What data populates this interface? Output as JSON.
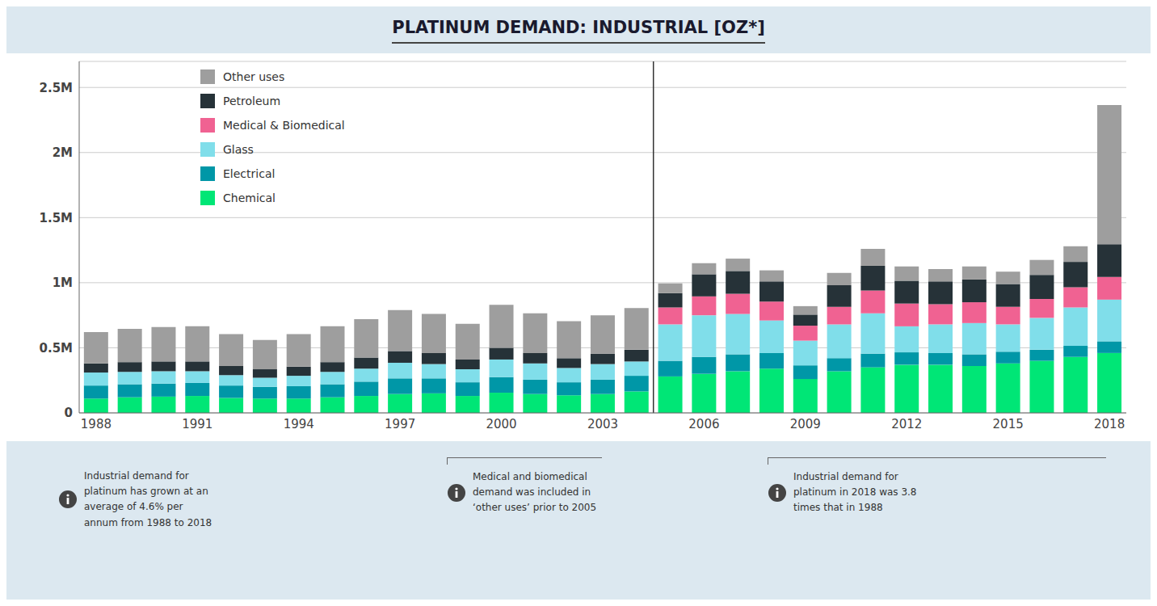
{
  "chart_data": {
    "type": "bar",
    "title": "PLATINUM DEMAND: INDUSTRIAL [OZ*]",
    "categories": [
      "1988",
      null,
      null,
      "1991",
      null,
      null,
      "1994",
      null,
      null,
      "1997",
      null,
      null,
      "2000",
      null,
      null,
      "2003",
      null,
      null,
      "2006",
      null,
      null,
      "2009",
      null,
      null,
      "2012",
      null,
      null,
      "2015",
      null,
      null,
      "2018"
    ],
    "series": [
      {
        "name": "Chemical",
        "color": "#00e676",
        "values": [
          110000,
          120000,
          125000,
          130000,
          115000,
          110000,
          110000,
          120000,
          130000,
          145000,
          150000,
          130000,
          155000,
          145000,
          135000,
          145000,
          165000,
          280000,
          300000,
          320000,
          340000,
          260000,
          320000,
          350000,
          370000,
          370000,
          360000,
          380000,
          400000,
          430000,
          460000
        ]
      },
      {
        "name": "Electrical",
        "color": "#0097a7",
        "values": [
          100000,
          100000,
          100000,
          100000,
          95000,
          90000,
          95000,
          100000,
          110000,
          120000,
          115000,
          105000,
          120000,
          110000,
          100000,
          110000,
          120000,
          120000,
          130000,
          130000,
          120000,
          105000,
          100000,
          105000,
          95000,
          90000,
          90000,
          90000,
          85000,
          85000,
          90000
        ]
      },
      {
        "name": "Glass",
        "color": "#80deea",
        "values": [
          100000,
          95000,
          95000,
          90000,
          80000,
          70000,
          80000,
          95000,
          100000,
          120000,
          110000,
          100000,
          135000,
          125000,
          110000,
          120000,
          110000,
          280000,
          320000,
          310000,
          250000,
          190000,
          260000,
          310000,
          200000,
          220000,
          240000,
          210000,
          245000,
          295000,
          320000
        ]
      },
      {
        "name": "Medical & Biomedical",
        "color": "#f06292",
        "values": [
          0,
          0,
          0,
          0,
          0,
          0,
          0,
          0,
          0,
          0,
          0,
          0,
          0,
          0,
          0,
          0,
          0,
          130000,
          145000,
          155000,
          145000,
          115000,
          135000,
          175000,
          175000,
          155000,
          160000,
          135000,
          145000,
          155000,
          175000
        ]
      },
      {
        "name": "Petroleum",
        "color": "#263238",
        "values": [
          70000,
          75000,
          75000,
          75000,
          70000,
          65000,
          70000,
          75000,
          85000,
          90000,
          85000,
          75000,
          90000,
          80000,
          75000,
          80000,
          90000,
          110000,
          170000,
          175000,
          155000,
          85000,
          165000,
          190000,
          175000,
          175000,
          175000,
          175000,
          185000,
          195000,
          250000
        ]
      },
      {
        "name": "Other uses",
        "color": "#9e9e9e",
        "values": [
          240000,
          255000,
          265000,
          270000,
          245000,
          225000,
          250000,
          275000,
          295000,
          315000,
          300000,
          275000,
          330000,
          305000,
          285000,
          295000,
          320000,
          75000,
          85000,
          95000,
          85000,
          65000,
          95000,
          130000,
          110000,
          95000,
          100000,
          95000,
          115000,
          120000,
          1070000
        ]
      }
    ],
    "stacked": true,
    "ylim": [
      0,
      2700000
    ],
    "yticks": [
      0,
      {
        "value": 500000,
        "label": "0.5M"
      },
      {
        "value": 1000000,
        "label": "1M"
      },
      {
        "value": 1500000,
        "label": "1.5M"
      },
      {
        "value": 2000000,
        "label": "2M"
      },
      {
        "value": 2500000,
        "label": "2.5M"
      }
    ],
    "grid": true,
    "legend": "upper left",
    "annotations": [
      "Industrial demand for\nplatinum has grown at an\naverage of 4.6% per\nannum from 1988 to 2018",
      "Medical and biomedical\ndemand was included in\n‘other uses’ prior to 2005",
      "Industrial demand for\nplatinum in 2018 was 3.8\ntimes that in 1988"
    ]
  }
}
